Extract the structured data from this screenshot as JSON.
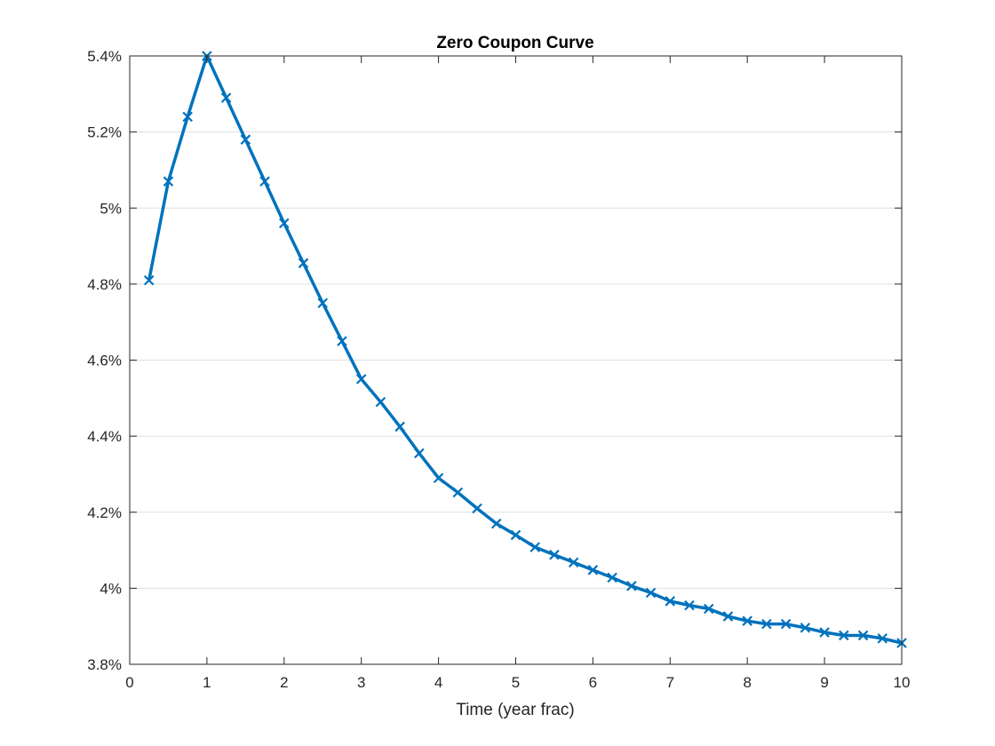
{
  "chart_data": {
    "type": "line",
    "title": "Zero Coupon Curve",
    "xlabel": "Time (year frac)",
    "ylabel": "",
    "xlim": [
      0,
      10
    ],
    "ylim": [
      0.038,
      0.054
    ],
    "x_ticks": [
      0,
      1,
      2,
      3,
      4,
      5,
      6,
      7,
      8,
      9,
      10
    ],
    "x_tick_labels": [
      "0",
      "1",
      "2",
      "3",
      "4",
      "5",
      "6",
      "7",
      "8",
      "9",
      "10"
    ],
    "y_ticks": [
      0.038,
      0.04,
      0.042,
      0.044,
      0.046,
      0.048,
      0.05,
      0.052,
      0.054
    ],
    "y_tick_labels": [
      "3.8%",
      "4%",
      "4.2%",
      "4.4%",
      "4.6%",
      "4.8%",
      "5%",
      "5.2%",
      "5.4%"
    ],
    "grid": "horizontal",
    "marker": "x",
    "series": [
      {
        "color": "#0072BD",
        "x": [
          0.25,
          0.5,
          0.75,
          1,
          1.25,
          1.5,
          1.75,
          2,
          2.25,
          2.5,
          2.75,
          3,
          3.25,
          3.5,
          3.75,
          4,
          4.25,
          4.5,
          4.75,
          5,
          5.25,
          5.5,
          5.75,
          6,
          6.25,
          6.5,
          6.75,
          7,
          7.25,
          7.5,
          7.75,
          8,
          8.25,
          8.5,
          8.75,
          9,
          9.25,
          9.5,
          9.75,
          10
        ],
        "y": [
          0.0481,
          0.0507,
          0.0524,
          0.054,
          0.0529,
          0.0518,
          0.0507,
          0.0496,
          0.04855,
          0.0475,
          0.0465,
          0.0455,
          0.0449,
          0.04425,
          0.04355,
          0.0429,
          0.04252,
          0.0421,
          0.0417,
          0.0414,
          0.04108,
          0.04088,
          0.04068,
          0.04048,
          0.04028,
          0.04006,
          0.03988,
          0.03966,
          0.03955,
          0.03946,
          0.03926,
          0.03914,
          0.03906,
          0.03906,
          0.03896,
          0.03884,
          0.03876,
          0.03876,
          0.03868,
          0.03856
        ]
      }
    ]
  }
}
